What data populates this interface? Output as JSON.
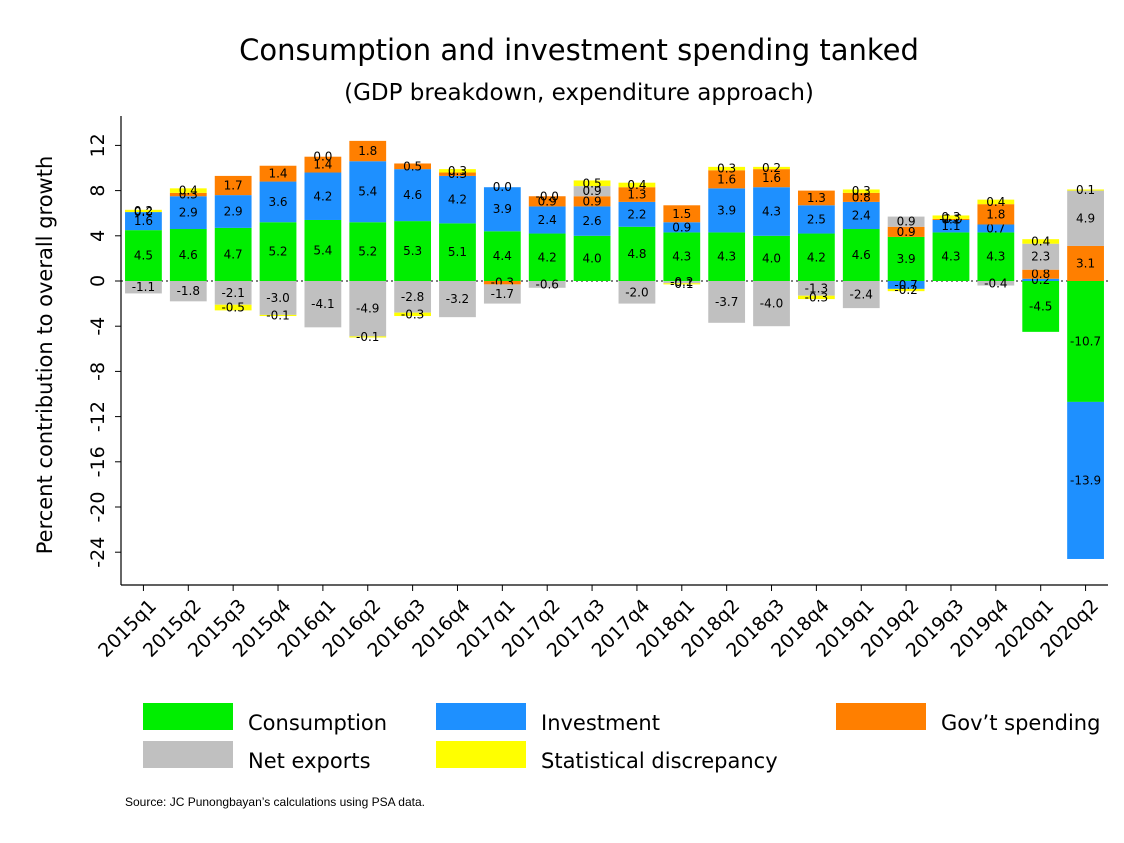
{
  "chart_data": {
    "type": "bar",
    "stacked": true,
    "title": "Consumption and investment spending tanked",
    "subtitle": "(GDP breakdown, expenditure approach)",
    "ylabel": "Percent contribution to overall growth",
    "ylim": [
      -26,
      15
    ],
    "yticks": [
      12,
      8,
      4,
      0,
      -4,
      -8,
      -12,
      -16,
      -20,
      -24
    ],
    "zero_line": "dotted",
    "legend_position": "bottom",
    "categories": [
      "2015q1",
      "2015q2",
      "2015q3",
      "2015q4",
      "2016q1",
      "2016q2",
      "2016q3",
      "2016q4",
      "2017q1",
      "2017q2",
      "2017q3",
      "2017q4",
      "2018q1",
      "2018q2",
      "2018q3",
      "2018q4",
      "2019q1",
      "2019q2",
      "2019q3",
      "2019q4",
      "2020q1",
      "2020q2"
    ],
    "series": [
      {
        "name": "Consumption",
        "color": "#00ee00",
        "values": [
          4.5,
          4.6,
          4.7,
          5.2,
          5.4,
          5.2,
          5.3,
          5.1,
          4.4,
          4.2,
          4.0,
          4.8,
          4.3,
          4.3,
          4.0,
          4.2,
          4.6,
          3.9,
          4.3,
          4.3,
          -4.5,
          -10.7
        ]
      },
      {
        "name": "Investment",
        "color": "#1e90ff",
        "values": [
          1.6,
          2.9,
          2.9,
          3.6,
          4.2,
          5.4,
          4.6,
          4.2,
          3.9,
          2.4,
          2.6,
          2.2,
          0.9,
          3.9,
          4.3,
          2.5,
          2.4,
          -0.7,
          1.1,
          0.7,
          0.2,
          -13.9
        ]
      },
      {
        "name": "Gov’t spending",
        "color": "#ff7f00",
        "values": [
          0.0,
          0.3,
          1.7,
          1.4,
          1.4,
          1.8,
          0.5,
          0.3,
          -0.3,
          0.9,
          0.9,
          1.3,
          1.5,
          1.6,
          1.6,
          1.3,
          0.8,
          0.9,
          0.1,
          1.8,
          0.8,
          3.1
        ]
      },
      {
        "name": "Net exports",
        "color": "#c0c0c0",
        "values": [
          -1.1,
          -1.8,
          -2.1,
          -3.0,
          -4.1,
          -4.9,
          -2.8,
          -3.2,
          -1.7,
          -0.6,
          0.9,
          -2.0,
          -0.2,
          -3.7,
          -4.0,
          -1.3,
          -2.4,
          0.9,
          -0.0,
          -0.4,
          2.3,
          4.9
        ]
      },
      {
        "name": "Statistical discrepancy",
        "color": "#ffff00",
        "values": [
          0.2,
          0.4,
          -0.5,
          -0.1,
          0.0,
          -0.1,
          -0.3,
          0.3,
          0.0,
          -0.0,
          0.5,
          0.4,
          -0.1,
          0.3,
          0.2,
          -0.3,
          0.3,
          -0.2,
          0.3,
          0.4,
          0.4,
          0.1
        ]
      }
    ]
  },
  "legend": {
    "consumption": "Consumption",
    "investment": "Investment",
    "govt": "Gov’t spending",
    "netexports": "Net exports",
    "statdisc": "Statistical discrepancy"
  },
  "source": "Source: JC Punongbayan’s calculations using PSA data."
}
